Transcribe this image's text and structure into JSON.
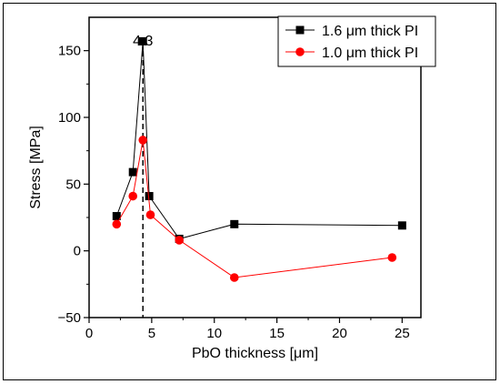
{
  "chart_data": {
    "type": "scatter",
    "xlabel": "PbO thickness [μm]",
    "ylabel": "Stress [MPa]",
    "xlim": [
      0,
      26.5
    ],
    "ylim": [
      -50,
      175
    ],
    "xticks": [
      0,
      5,
      10,
      15,
      20,
      25
    ],
    "yticks": [
      -50,
      0,
      50,
      100,
      150
    ],
    "grid": false,
    "legend_position": "top-right",
    "annotation": {
      "label": "4.3",
      "x": 4.3,
      "style": "dashed vertical line"
    },
    "series": [
      {
        "name": "1.6 μm thick PI",
        "color": "#000000",
        "marker": "square",
        "x": [
          2.2,
          3.5,
          4.3,
          4.8,
          7.2,
          11.6,
          25.0
        ],
        "y": [
          26,
          59,
          157,
          41,
          9,
          20,
          19
        ]
      },
      {
        "name": "1.0 μm thick PI",
        "color": "#ff0000",
        "marker": "circle",
        "x": [
          2.2,
          3.5,
          4.3,
          4.9,
          7.2,
          11.6,
          24.2
        ],
        "y": [
          20,
          41,
          83,
          27,
          8,
          -20,
          -5
        ]
      }
    ]
  }
}
